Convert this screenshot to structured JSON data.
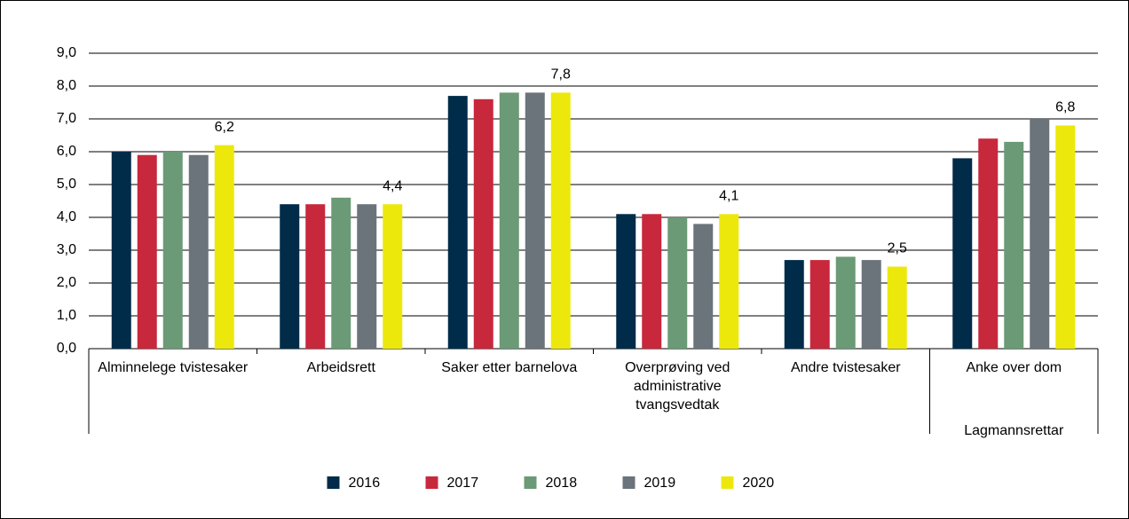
{
  "chart_data": {
    "type": "bar",
    "categories": [
      "Alminnelege tvistesaker",
      "Arbeidsrett",
      "Saker etter barnelova",
      "Overprøving ved administrative tvangsvedtak",
      "Andre tvistesaker",
      "Anke over dom"
    ],
    "group_label": "Lagmannsrettar",
    "series": [
      {
        "name": "2016",
        "color": "#002b49",
        "values": [
          6.0,
          4.4,
          7.7,
          4.1,
          2.7,
          5.8
        ]
      },
      {
        "name": "2017",
        "color": "#c8283c",
        "values": [
          5.9,
          4.4,
          7.6,
          4.1,
          2.7,
          6.4
        ]
      },
      {
        "name": "2018",
        "color": "#6b9a76",
        "values": [
          6.0,
          4.6,
          7.8,
          4.0,
          2.8,
          6.3
        ]
      },
      {
        "name": "2019",
        "color": "#6b737b",
        "values": [
          5.9,
          4.4,
          7.8,
          3.8,
          2.7,
          7.0
        ]
      },
      {
        "name": "2020",
        "color": "#ede80c",
        "values": [
          6.2,
          4.4,
          7.8,
          4.1,
          2.5,
          6.8
        ],
        "value_labels": [
          "6,2",
          "4,4",
          "7,8",
          "4,1",
          "2,5",
          "6,8"
        ]
      }
    ],
    "ylim": [
      0,
      9
    ],
    "yticks": [
      {
        "value": 0,
        "label": "0,0"
      },
      {
        "value": 1,
        "label": "1,0"
      },
      {
        "value": 2,
        "label": "2,0"
      },
      {
        "value": 3,
        "label": "3,0"
      },
      {
        "value": 4,
        "label": "4,0"
      },
      {
        "value": 5,
        "label": "5,0"
      },
      {
        "value": 6,
        "label": "6,0"
      },
      {
        "value": 7,
        "label": "7,0"
      },
      {
        "value": 8,
        "label": "8,0"
      },
      {
        "value": 9,
        "label": "9,0"
      }
    ],
    "grid": true,
    "legend": "bottom"
  }
}
